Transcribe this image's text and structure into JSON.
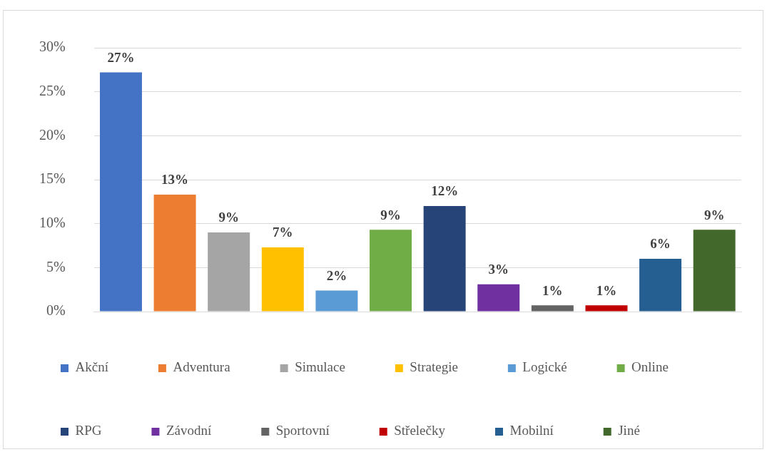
{
  "chart_data": {
    "type": "bar",
    "categories": [
      null,
      null,
      null,
      null,
      null,
      null,
      null,
      null,
      null,
      null,
      null,
      null
    ],
    "series": [
      {
        "name": "Akční",
        "color": "#4472c4",
        "values": [
          27.2,
          null,
          null,
          null,
          null,
          null,
          null,
          null,
          null,
          null,
          null,
          null
        ],
        "value_labels": [
          "27%",
          null,
          null,
          null,
          null,
          null,
          null,
          null,
          null,
          null,
          null,
          null
        ]
      },
      {
        "name": "Adventura",
        "color": "#ed7d31",
        "values": [
          null,
          13.3,
          null,
          null,
          null,
          null,
          null,
          null,
          null,
          null,
          null,
          null
        ],
        "value_labels": [
          null,
          "13%",
          null,
          null,
          null,
          null,
          null,
          null,
          null,
          null,
          null,
          null
        ]
      },
      {
        "name": "Simulace",
        "color": "#a5a5a5",
        "values": [
          null,
          null,
          9.0,
          null,
          null,
          null,
          null,
          null,
          null,
          null,
          null,
          null
        ],
        "value_labels": [
          null,
          null,
          "9%",
          null,
          null,
          null,
          null,
          null,
          null,
          null,
          null,
          null
        ]
      },
      {
        "name": "Strategie",
        "color": "#ffc000",
        "values": [
          null,
          null,
          null,
          7.3,
          null,
          null,
          null,
          null,
          null,
          null,
          null,
          null
        ],
        "value_labels": [
          null,
          null,
          null,
          "7%",
          null,
          null,
          null,
          null,
          null,
          null,
          null,
          null
        ]
      },
      {
        "name": "Logické",
        "color": "#5b9bd5",
        "values": [
          null,
          null,
          null,
          null,
          2.4,
          null,
          null,
          null,
          null,
          null,
          null,
          null
        ],
        "value_labels": [
          null,
          null,
          null,
          null,
          "2%",
          null,
          null,
          null,
          null,
          null,
          null,
          null
        ]
      },
      {
        "name": "Online",
        "color": "#70ad47",
        "values": [
          null,
          null,
          null,
          null,
          null,
          9.3,
          null,
          null,
          null,
          null,
          null,
          null
        ],
        "value_labels": [
          null,
          null,
          null,
          null,
          null,
          "9%",
          null,
          null,
          null,
          null,
          null,
          null
        ]
      },
      {
        "name": "RPG",
        "color": "#264478",
        "values": [
          null,
          null,
          null,
          null,
          null,
          null,
          12.0,
          null,
          null,
          null,
          null,
          null
        ],
        "value_labels": [
          null,
          null,
          null,
          null,
          null,
          null,
          "12%",
          null,
          null,
          null,
          null,
          null
        ]
      },
      {
        "name": "Závodní",
        "color": "#7030a0",
        "values": [
          null,
          null,
          null,
          null,
          null,
          null,
          null,
          3.1,
          null,
          null,
          null,
          null
        ],
        "value_labels": [
          null,
          null,
          null,
          null,
          null,
          null,
          null,
          "3%",
          null,
          null,
          null,
          null
        ]
      },
      {
        "name": "Sportovní",
        "color": "#636363",
        "values": [
          null,
          null,
          null,
          null,
          null,
          null,
          null,
          null,
          0.7,
          null,
          null,
          null
        ],
        "value_labels": [
          null,
          null,
          null,
          null,
          null,
          null,
          null,
          null,
          "1%",
          null,
          null,
          null
        ]
      },
      {
        "name": "Střelečky",
        "color": "#c00000",
        "values": [
          null,
          null,
          null,
          null,
          null,
          null,
          null,
          null,
          null,
          0.7,
          null,
          null
        ],
        "value_labels": [
          null,
          null,
          null,
          null,
          null,
          null,
          null,
          null,
          null,
          "1%",
          null,
          null
        ]
      },
      {
        "name": "Mobilní",
        "color": "#255e91",
        "values": [
          null,
          null,
          null,
          null,
          null,
          null,
          null,
          null,
          null,
          null,
          6.0,
          null
        ],
        "value_labels": [
          null,
          null,
          null,
          null,
          null,
          null,
          null,
          null,
          null,
          null,
          "6%",
          null
        ]
      },
      {
        "name": "Jiné",
        "color": "#43682b",
        "values": [
          null,
          null,
          null,
          null,
          null,
          null,
          null,
          null,
          null,
          null,
          null,
          9.3
        ],
        "value_labels": [
          null,
          null,
          null,
          null,
          null,
          null,
          null,
          null,
          null,
          null,
          null,
          "9%"
        ]
      }
    ],
    "ylim": [
      0,
      30
    ],
    "yticks": [
      {
        "value": 0,
        "label": "0%"
      },
      {
        "value": 5,
        "label": "5%"
      },
      {
        "value": 10,
        "label": "10%"
      },
      {
        "value": 15,
        "label": "15%"
      },
      {
        "value": 20,
        "label": "20%"
      },
      {
        "value": 25,
        "label": "25%"
      },
      {
        "value": 30,
        "label": "30%"
      }
    ],
    "grid": "y",
    "legend": "bottom",
    "tick_labels": "y"
  }
}
